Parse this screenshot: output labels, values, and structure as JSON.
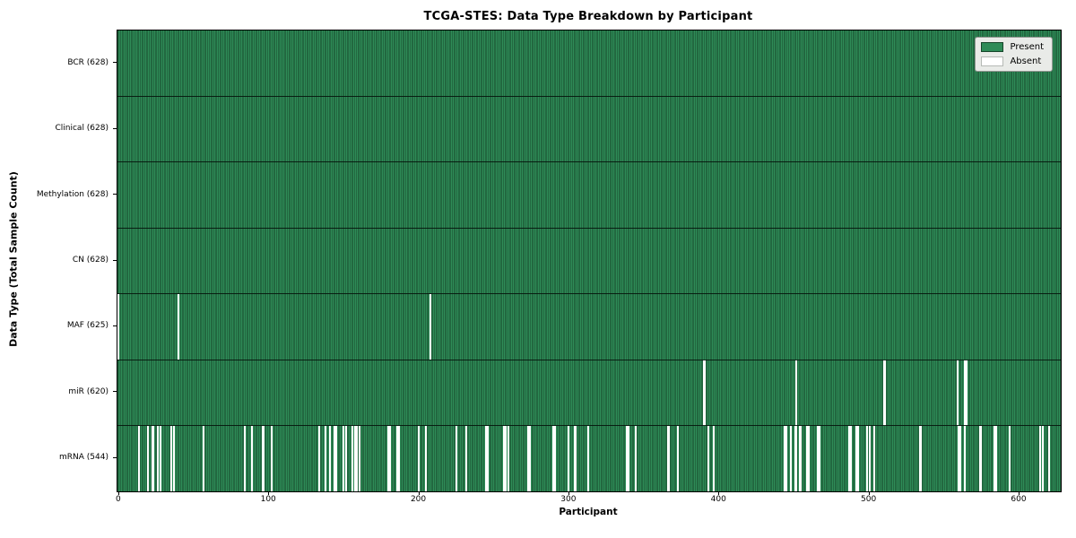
{
  "chart_data": {
    "type": "heatmap",
    "title": "TCGA-STES: Data Type Breakdown by Participant",
    "xlabel": "Participant",
    "ylabel": "Data Type (Total Sample Count)",
    "x_ticks": [
      0,
      100,
      200,
      300,
      400,
      500,
      600
    ],
    "x_range": [
      0,
      628
    ],
    "total_participants": 628,
    "grid": false,
    "legend_position": "upper-right",
    "legend_entries": [
      {
        "label": "Present",
        "color": "#2e8b57"
      },
      {
        "label": "Absent",
        "color": "#ffffff"
      }
    ],
    "rows": [
      {
        "label": "BCR (628)",
        "data_type": "BCR",
        "present_count": 628,
        "absent_count": 0,
        "absent_participants": []
      },
      {
        "label": "Clinical (628)",
        "data_type": "Clinical",
        "present_count": 628,
        "absent_count": 0,
        "absent_participants": []
      },
      {
        "label": "Methylation (628)",
        "data_type": "Methylation",
        "present_count": 628,
        "absent_count": 0,
        "absent_participants": []
      },
      {
        "label": "CN (628)",
        "data_type": "CN",
        "present_count": 628,
        "absent_count": 0,
        "absent_participants": []
      },
      {
        "label": "MAF (625)",
        "data_type": "MAF",
        "present_count": 625,
        "absent_count": 3,
        "absent_participants": [
          0,
          40,
          208
        ]
      },
      {
        "label": "miR (620)",
        "data_type": "miR",
        "present_count": 620,
        "absent_count": 8,
        "absent_participants": [
          390,
          391,
          452,
          510,
          511,
          559,
          564,
          565
        ]
      },
      {
        "label": "mRNA (544)",
        "data_type": "mRNA",
        "present_count": 544,
        "absent_count": 84,
        "absent_participants": [
          14,
          20,
          23,
          26,
          28,
          35,
          37,
          57,
          84,
          89,
          96,
          97,
          102,
          134,
          138,
          141,
          144,
          145,
          150,
          152,
          156,
          158,
          159,
          161,
          180,
          181,
          186,
          187,
          200,
          205,
          225,
          232,
          245,
          246,
          257,
          258,
          260,
          273,
          274,
          290,
          291,
          300,
          304,
          305,
          313,
          339,
          340,
          345,
          366,
          367,
          373,
          393,
          397,
          444,
          445,
          448,
          451,
          452,
          454,
          455,
          459,
          460,
          466,
          467,
          487,
          488,
          492,
          493,
          499,
          501,
          504,
          534,
          535,
          560,
          561,
          564,
          574,
          575,
          584,
          585,
          594,
          614,
          616,
          620
        ]
      }
    ],
    "colors": {
      "present_fill": "#2e8b57",
      "bar_edge": "#16452a",
      "absent_fill": "#ffffff",
      "legend_background": "#e9ebe8",
      "axis_color": "#000000",
      "background": "#ffffff"
    }
  }
}
